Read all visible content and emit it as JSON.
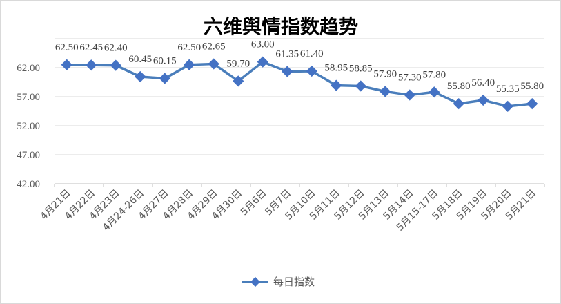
{
  "chart_data": {
    "type": "line",
    "title": "六维舆情指数趋势",
    "xlabel": "",
    "ylabel": "",
    "categories": [
      "4月21日",
      "4月22日",
      "4月23日",
      "4月24-26日",
      "4月27日",
      "4月28日",
      "4月29日",
      "4月30日",
      "5月6日",
      "5月7日",
      "5月10日",
      "5月11日",
      "5月12日",
      "5月13日",
      "5月14日",
      "5月15-17日",
      "5月18日",
      "5月19日",
      "5月20日",
      "5月21日"
    ],
    "series": [
      {
        "name": "每日指数",
        "values": [
          62.5,
          62.45,
          62.4,
          60.45,
          60.15,
          62.5,
          62.65,
          59.7,
          63.0,
          61.35,
          61.4,
          58.95,
          58.85,
          57.9,
          57.3,
          57.8,
          55.8,
          56.4,
          55.35,
          55.8
        ],
        "labels": [
          "62.50",
          "62.45",
          "62.40",
          "60.45",
          "60.15",
          "62.50",
          "62.65",
          "59.70",
          "63.00",
          "61.35",
          "61.40",
          "58.95",
          "58.85",
          "57.90",
          "57.30",
          "57.80",
          "55.80",
          "56.40",
          "55.35",
          "55.80"
        ]
      }
    ],
    "yticks": [
      "42.00",
      "47.00",
      "52.00",
      "57.00",
      "62.00"
    ],
    "ylim": [
      42,
      67
    ],
    "grid": true,
    "legend": "bottom",
    "colors": {
      "line": "#4a7ebb",
      "marker": "#4472c4",
      "grid": "#d9d9d9",
      "axis": "#bfbfbf"
    }
  }
}
